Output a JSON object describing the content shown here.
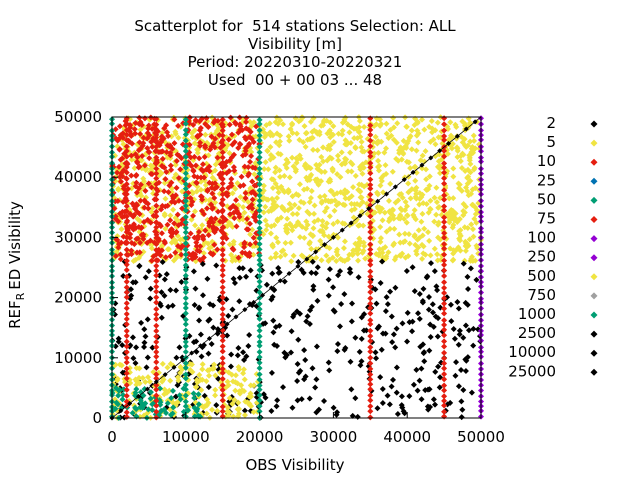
{
  "chart_data": {
    "type": "scatter",
    "title_lines": [
      "Scatterplot for  514 stations Selection: ALL",
      "Visibility [m]",
      "Period: 20220310-20220321",
      "Used  00 + 00 03 ... 48"
    ],
    "xlabel": "OBS Visibility",
    "ylabel": "REF",
    "ylabel_sub": "R",
    "ylabel_rest": "ED Visibility",
    "xlim": [
      0,
      50000
    ],
    "ylim": [
      0,
      50000
    ],
    "x_ticks": [
      "0",
      "10000",
      "20000",
      "30000",
      "40000",
      "50000"
    ],
    "y_ticks": [
      "0",
      "10000",
      "20000",
      "30000",
      "40000",
      "50000"
    ],
    "x_tick_values": [
      0,
      10000,
      20000,
      30000,
      40000,
      50000
    ],
    "y_tick_values": [
      0,
      10000,
      20000,
      30000,
      40000,
      50000
    ],
    "grid": false,
    "diagonal": true,
    "legend_placement": "right",
    "legend": [
      {
        "label": "2",
        "color": "#000000"
      },
      {
        "label": "5",
        "color": "#f0e442"
      },
      {
        "label": "10",
        "color": "#e51e10"
      },
      {
        "label": "25",
        "color": "#0072b2"
      },
      {
        "label": "50",
        "color": "#009e73"
      },
      {
        "label": "75",
        "color": "#e51e10"
      },
      {
        "label": "100",
        "color": "#9400d3"
      },
      {
        "label": "250",
        "color": "#9400d3"
      },
      {
        "label": "500",
        "color": "#f0e442"
      },
      {
        "label": "750",
        "color": "#a0a0a0"
      },
      {
        "label": "1000",
        "color": "#009e73"
      },
      {
        "label": "2500",
        "color": "#000000"
      },
      {
        "label": "10000",
        "color": "#000000"
      },
      {
        "label": "25000",
        "color": "#000000"
      }
    ],
    "regions": [
      {
        "x": [
          0,
          50000
        ],
        "y": [
          26000,
          50000
        ],
        "fill": "#f0e442",
        "density": "dense"
      },
      {
        "x": [
          0,
          20000
        ],
        "y": [
          26000,
          50000
        ],
        "fill": "#e51e10",
        "density": "dense"
      },
      {
        "x": [
          0,
          50000
        ],
        "y": [
          0,
          26000
        ],
        "fill": "#000000",
        "density": "sparse"
      },
      {
        "x": [
          0,
          20000
        ],
        "y": [
          0,
          9000
        ],
        "fill": "#f0e442",
        "density": "dense"
      },
      {
        "x": [
          0,
          12000
        ],
        "y": [
          0,
          5000
        ],
        "fill": "#009e73",
        "density": "dense"
      }
    ]
  }
}
